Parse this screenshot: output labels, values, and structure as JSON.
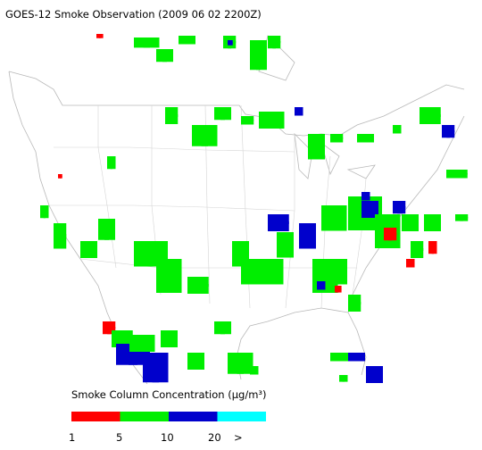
{
  "title": "GOES-12 Smoke Observation (2009 06 02  2200Z)",
  "legend": {
    "title": "Smoke Column Concentration (μg/m³)",
    "colors": [
      "#ff0000",
      "#00ee00",
      "#0000cc",
      "#00ffff"
    ],
    "labels": [
      1,
      5,
      10,
      20,
      ">"
    ]
  }
}
